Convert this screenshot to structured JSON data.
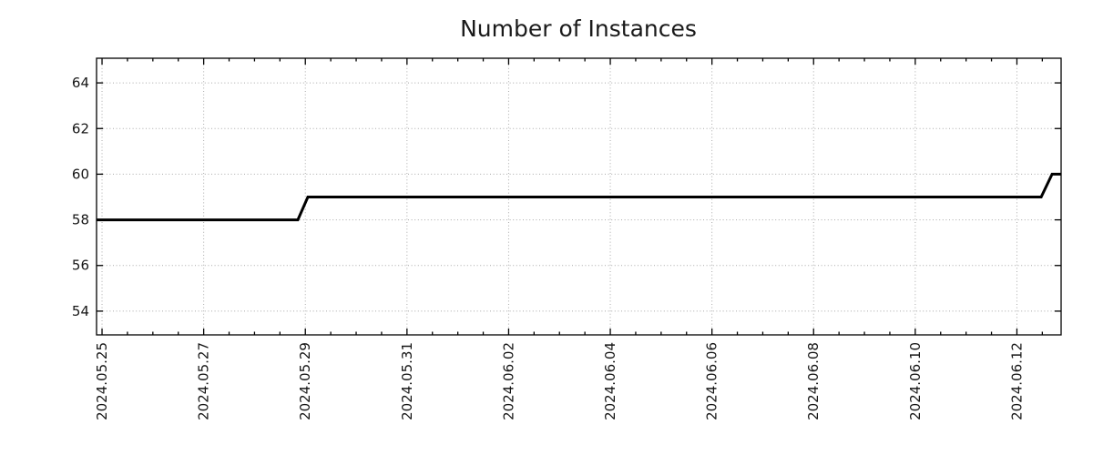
{
  "figure": {
    "title": "Number of Instances"
  },
  "chart_data": {
    "type": "line",
    "subtype": "step",
    "title": "Number of Instances",
    "xlabel": "",
    "ylabel": "",
    "legend": "none",
    "grid": {
      "shown": true,
      "style": "dotted",
      "color": "#a9a9a9"
    },
    "colors": {
      "line": "#000000",
      "axis": "#000000",
      "text": "#161616",
      "background": "#ffffff"
    },
    "x_axis": {
      "tick_labels": [
        "2024.05.25",
        "2024.05.27",
        "2024.05.29",
        "2024.05.31",
        "2024.06.02",
        "2024.06.04",
        "2024.06.06",
        "2024.06.08",
        "2024.06.10",
        "2024.06.12"
      ],
      "tick_days_from_start": [
        0,
        2,
        4,
        6,
        8,
        10,
        12,
        14,
        16,
        18
      ],
      "minor_tick_interval_days": 0.5,
      "range_days": [
        -0.108,
        18.87
      ],
      "label_rotation_deg": -90
    },
    "y_axis": {
      "ticks": [
        54,
        56,
        58,
        60,
        62,
        64
      ],
      "range": [
        52.96,
        65.08
      ]
    },
    "series": [
      {
        "name": "Number of Instances",
        "description": "Step line: 58 instances from 2024.05.25 until late 2024.05.28, rises to 59 at 2024.05.29, stays at 59 until mid 2024.06.12, rises to 60 just before the right edge (~2024.06.13)",
        "points": [
          {
            "day": -0.108,
            "value": 58
          },
          {
            "day": 3.853,
            "value": 58
          },
          {
            "day": 4.05,
            "value": 59
          },
          {
            "day": 18.477,
            "value": 59
          },
          {
            "day": 18.692,
            "value": 60
          },
          {
            "day": 18.87,
            "value": 60
          }
        ]
      }
    ]
  }
}
